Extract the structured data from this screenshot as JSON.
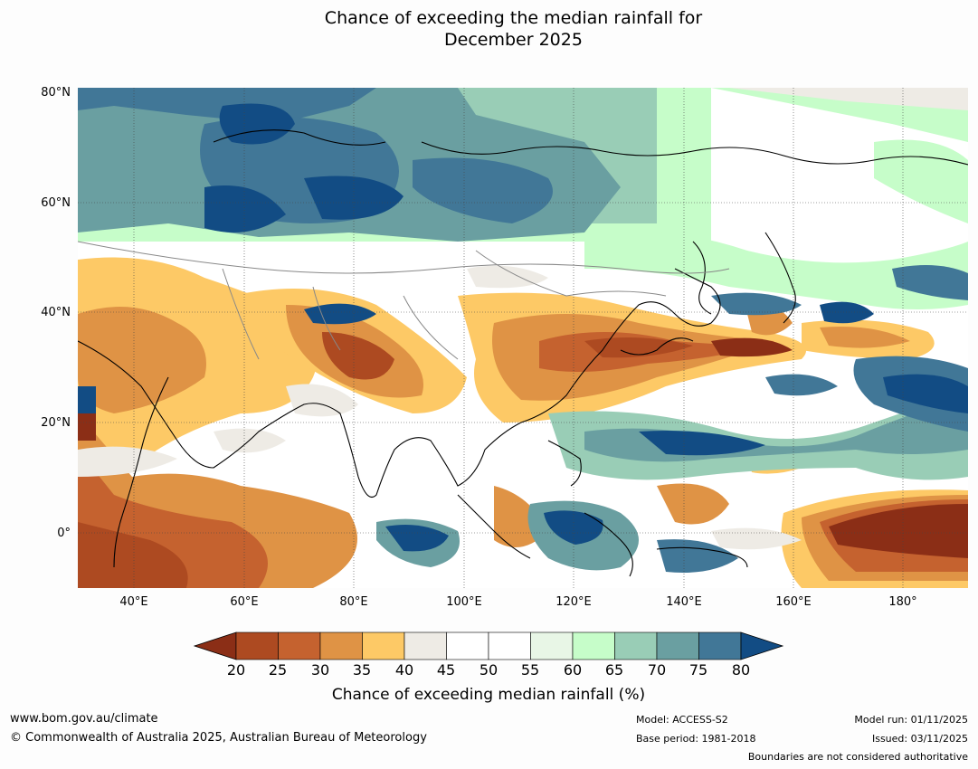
{
  "title": {
    "line1": "Chance of exceeding the median rainfall for",
    "line2": "December 2025"
  },
  "map": {
    "lat_labels": [
      "80°N",
      "60°N",
      "40°N",
      "20°N",
      "0°"
    ],
    "lon_labels": [
      "40°E",
      "60°E",
      "80°E",
      "100°E",
      "120°E",
      "140°E",
      "160°E",
      "180°"
    ],
    "extent": {
      "lon_min": 30,
      "lon_max": 191.5,
      "lat_min": -10,
      "lat_max": 80
    },
    "land_fill": "#ffffff",
    "ocean_fill": "#ffffff"
  },
  "colorbar": {
    "ticks": [
      "20",
      "25",
      "30",
      "35",
      "40",
      "45",
      "50",
      "55",
      "60",
      "65",
      "70",
      "75",
      "80"
    ],
    "colors": [
      "#8b2e16",
      "#ad4a21",
      "#c5622f",
      "#df9345",
      "#fdc966",
      "#eeebe5",
      "#ffffff",
      "#ffffff",
      "#e8f6e6",
      "#c6fdc9",
      "#99cdb6",
      "#6a9fa1",
      "#417797",
      "#124c84"
    ],
    "label": "Chance of exceeding median rainfall (%)"
  },
  "footer": {
    "website": "www.bom.gov.au/climate",
    "copyright": "© Commonwealth of Australia 2025, Australian Bureau of Meteorology",
    "model": "Model: ACCESS-S2",
    "base_period": "Base period: 1981-2018",
    "model_run": "Model run: 01/11/2025",
    "issued": "Issued: 03/11/2025",
    "disclaimer": "Boundaries are not considered authoritative"
  }
}
